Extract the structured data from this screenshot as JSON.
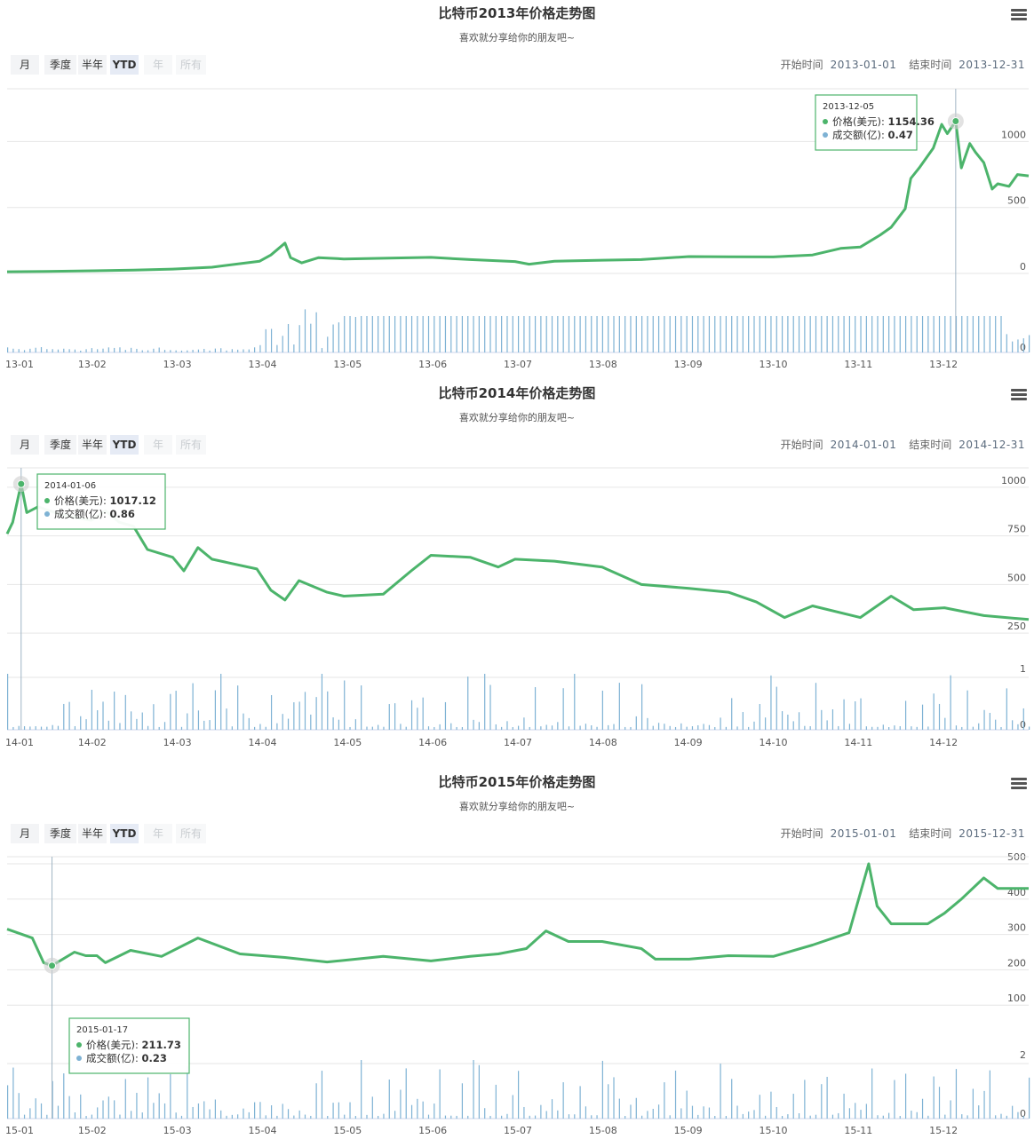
{
  "colors": {
    "price_line": "#4cb46b",
    "volume_bar": "#7eb2d4",
    "tooltip_border": "#4cb46b",
    "grid": "#e6e6e6",
    "crosshair": "#9fb4c4"
  },
  "panels": [
    {
      "title": "比特币2013年价格走势图",
      "subtitle": "喜欢就分享给你的朋友吧~",
      "range_buttons": [
        {
          "label": "月",
          "state": "normal"
        },
        {
          "label": "季度",
          "state": "normal"
        },
        {
          "label": "半年",
          "state": "normal"
        },
        {
          "label": "YTD",
          "state": "active"
        },
        {
          "label": "年",
          "state": "disabled"
        },
        {
          "label": "所有",
          "state": "disabled"
        }
      ],
      "start_label": "开始时间",
      "start_value": "2013-01-01",
      "end_label": "结束时间",
      "end_value": "2013-12-31",
      "menu_icon": "hamburger-menu-icon"
    },
    {
      "title": "比特币2014年价格走势图",
      "subtitle": "喜欢就分享给你的朋友吧~",
      "range_buttons": [
        {
          "label": "月",
          "state": "normal"
        },
        {
          "label": "季度",
          "state": "normal"
        },
        {
          "label": "半年",
          "state": "normal"
        },
        {
          "label": "YTD",
          "state": "active"
        },
        {
          "label": "年",
          "state": "disabled"
        },
        {
          "label": "所有",
          "state": "disabled"
        }
      ],
      "start_label": "开始时间",
      "start_value": "2014-01-01",
      "end_label": "结束时间",
      "end_value": "2014-12-31",
      "menu_icon": "hamburger-menu-icon"
    },
    {
      "title": "比特币2015年价格走势图",
      "subtitle": "喜欢就分享给你的朋友吧~",
      "range_buttons": [
        {
          "label": "月",
          "state": "normal"
        },
        {
          "label": "季度",
          "state": "normal"
        },
        {
          "label": "半年",
          "state": "normal"
        },
        {
          "label": "YTD",
          "state": "active"
        },
        {
          "label": "年",
          "state": "disabled"
        },
        {
          "label": "所有",
          "state": "disabled"
        }
      ],
      "start_label": "开始时间",
      "start_value": "2015-01-01",
      "end_label": "结束时间",
      "end_value": "2015-12-31",
      "menu_icon": "hamburger-menu-icon"
    }
  ],
  "chart_data": [
    {
      "type": "line",
      "title": "比特币2013年价格走势图",
      "x_ticks": [
        "13-01",
        "13-02",
        "13-03",
        "13-04",
        "13-05",
        "13-06",
        "13-07",
        "13-08",
        "13-09",
        "13-10",
        "13-11",
        "13-12"
      ],
      "price_axis": {
        "ticks": [
          0,
          500,
          1000
        ],
        "ylim": [
          0,
          1400
        ]
      },
      "volume_axis": {
        "ticks": [
          0
        ]
      },
      "price_points": [
        [
          "2013-01-01",
          13
        ],
        [
          "2013-01-15",
          15
        ],
        [
          "2013-02-01",
          20
        ],
        [
          "2013-02-15",
          25
        ],
        [
          "2013-03-01",
          33
        ],
        [
          "2013-03-15",
          47
        ],
        [
          "2013-04-01",
          93
        ],
        [
          "2013-04-05",
          140
        ],
        [
          "2013-04-10",
          230
        ],
        [
          "2013-04-12",
          120
        ],
        [
          "2013-04-16",
          80
        ],
        [
          "2013-04-22",
          120
        ],
        [
          "2013-05-01",
          110
        ],
        [
          "2013-05-15",
          115
        ],
        [
          "2013-06-01",
          122
        ],
        [
          "2013-06-15",
          105
        ],
        [
          "2013-07-01",
          90
        ],
        [
          "2013-07-06",
          70
        ],
        [
          "2013-07-15",
          92
        ],
        [
          "2013-08-01",
          100
        ],
        [
          "2013-08-15",
          105
        ],
        [
          "2013-09-01",
          128
        ],
        [
          "2013-09-15",
          126
        ],
        [
          "2013-10-01",
          125
        ],
        [
          "2013-10-15",
          140
        ],
        [
          "2013-10-25",
          190
        ],
        [
          "2013-11-01",
          200
        ],
        [
          "2013-11-08",
          290
        ],
        [
          "2013-11-12",
          350
        ],
        [
          "2013-11-17",
          490
        ],
        [
          "2013-11-19",
          720
        ],
        [
          "2013-11-22",
          800
        ],
        [
          "2013-11-27",
          950
        ],
        [
          "2013-11-30",
          1130
        ],
        [
          "2013-12-02",
          1060
        ],
        [
          "2013-12-05",
          1154.36
        ],
        [
          "2013-12-07",
          800
        ],
        [
          "2013-12-10",
          985
        ],
        [
          "2013-12-12",
          920
        ],
        [
          "2013-12-15",
          840
        ],
        [
          "2013-12-18",
          640
        ],
        [
          "2013-12-20",
          680
        ],
        [
          "2013-12-24",
          660
        ],
        [
          "2013-12-27",
          750
        ],
        [
          "2013-12-31",
          740
        ]
      ],
      "volume_note": "daily volume bars, mostly flat after 13-05",
      "tooltip": {
        "date": "2013-12-05",
        "price_label": "价格(美元)",
        "price": "1154.36",
        "volume_label": "成交额(亿)",
        "volume": "0.47"
      }
    },
    {
      "type": "line",
      "title": "比特币2014年价格走势图",
      "x_ticks": [
        "14-01",
        "14-02",
        "14-03",
        "14-04",
        "14-05",
        "14-06",
        "14-07",
        "14-08",
        "14-09",
        "14-10",
        "14-11",
        "14-12"
      ],
      "price_axis": {
        "ticks": [
          250,
          500,
          750,
          1000
        ],
        "ylim": [
          150,
          1100
        ]
      },
      "volume_axis": {
        "ticks": [
          0,
          1
        ]
      },
      "price_points": [
        [
          "2014-01-01",
          760
        ],
        [
          "2014-01-03",
          820
        ],
        [
          "2014-01-06",
          1017.12
        ],
        [
          "2014-01-08",
          870
        ],
        [
          "2014-01-12",
          900
        ],
        [
          "2014-01-20",
          860
        ],
        [
          "2014-01-31",
          830
        ],
        [
          "2014-02-05",
          880
        ],
        [
          "2014-02-10",
          820
        ],
        [
          "2014-02-15",
          800
        ],
        [
          "2014-02-20",
          680
        ],
        [
          "2014-03-01",
          640
        ],
        [
          "2014-03-05",
          570
        ],
        [
          "2014-03-10",
          690
        ],
        [
          "2014-03-15",
          630
        ],
        [
          "2014-03-31",
          580
        ],
        [
          "2014-04-05",
          470
        ],
        [
          "2014-04-10",
          420
        ],
        [
          "2014-04-15",
          520
        ],
        [
          "2014-04-25",
          460
        ],
        [
          "2014-05-01",
          440
        ],
        [
          "2014-05-15",
          450
        ],
        [
          "2014-05-25",
          570
        ],
        [
          "2014-06-01",
          650
        ],
        [
          "2014-06-15",
          640
        ],
        [
          "2014-06-25",
          590
        ],
        [
          "2014-07-01",
          630
        ],
        [
          "2014-07-15",
          620
        ],
        [
          "2014-08-01",
          590
        ],
        [
          "2014-08-15",
          500
        ],
        [
          "2014-09-01",
          480
        ],
        [
          "2014-09-15",
          460
        ],
        [
          "2014-09-25",
          410
        ],
        [
          "2014-10-05",
          330
        ],
        [
          "2014-10-15",
          390
        ],
        [
          "2014-11-01",
          330
        ],
        [
          "2014-11-12",
          440
        ],
        [
          "2014-11-20",
          370
        ],
        [
          "2014-12-01",
          380
        ],
        [
          "2014-12-15",
          340
        ],
        [
          "2014-12-31",
          320
        ]
      ],
      "tooltip": {
        "date": "2014-01-06",
        "price_label": "价格(美元)",
        "price": "1017.12",
        "volume_label": "成交额(亿)",
        "volume": "0.86"
      }
    },
    {
      "type": "line",
      "title": "比特币2015年价格走势图",
      "x_ticks": [
        "15-01",
        "15-02",
        "15-03",
        "15-04",
        "15-05",
        "15-06",
        "15-07",
        "15-08",
        "15-09",
        "15-10",
        "15-11",
        "15-12"
      ],
      "price_axis": {
        "ticks": [
          100,
          200,
          300,
          400,
          500
        ],
        "ylim": [
          0,
          520
        ]
      },
      "volume_axis": {
        "ticks": [
          0,
          2
        ]
      },
      "price_points": [
        [
          "2015-01-01",
          315
        ],
        [
          "2015-01-10",
          290
        ],
        [
          "2015-01-14",
          220
        ],
        [
          "2015-01-17",
          211.73
        ],
        [
          "2015-01-25",
          250
        ],
        [
          "2015-01-29",
          240
        ],
        [
          "2015-02-02",
          240
        ],
        [
          "2015-02-05",
          220
        ],
        [
          "2015-02-14",
          255
        ],
        [
          "2015-02-25",
          238
        ],
        [
          "2015-03-10",
          290
        ],
        [
          "2015-03-25",
          245
        ],
        [
          "2015-04-10",
          235
        ],
        [
          "2015-04-25",
          222
        ],
        [
          "2015-05-15",
          238
        ],
        [
          "2015-06-01",
          225
        ],
        [
          "2015-06-15",
          238
        ],
        [
          "2015-06-25",
          245
        ],
        [
          "2015-07-05",
          260
        ],
        [
          "2015-07-12",
          310
        ],
        [
          "2015-07-20",
          280
        ],
        [
          "2015-08-01",
          280
        ],
        [
          "2015-08-15",
          260
        ],
        [
          "2015-08-20",
          230
        ],
        [
          "2015-09-01",
          230
        ],
        [
          "2015-09-15",
          240
        ],
        [
          "2015-10-01",
          238
        ],
        [
          "2015-10-15",
          270
        ],
        [
          "2015-10-28",
          305
        ],
        [
          "2015-11-04",
          500
        ],
        [
          "2015-11-07",
          380
        ],
        [
          "2015-11-12",
          330
        ],
        [
          "2015-11-25",
          330
        ],
        [
          "2015-12-01",
          360
        ],
        [
          "2015-12-07",
          400
        ],
        [
          "2015-12-15",
          460
        ],
        [
          "2015-12-20",
          430
        ],
        [
          "2015-12-31",
          430
        ]
      ],
      "tooltip": {
        "date": "2015-01-17",
        "price_label": "价格(美元)",
        "price": "211.73",
        "volume_label": "成交额(亿)",
        "volume": "0.23"
      }
    }
  ]
}
